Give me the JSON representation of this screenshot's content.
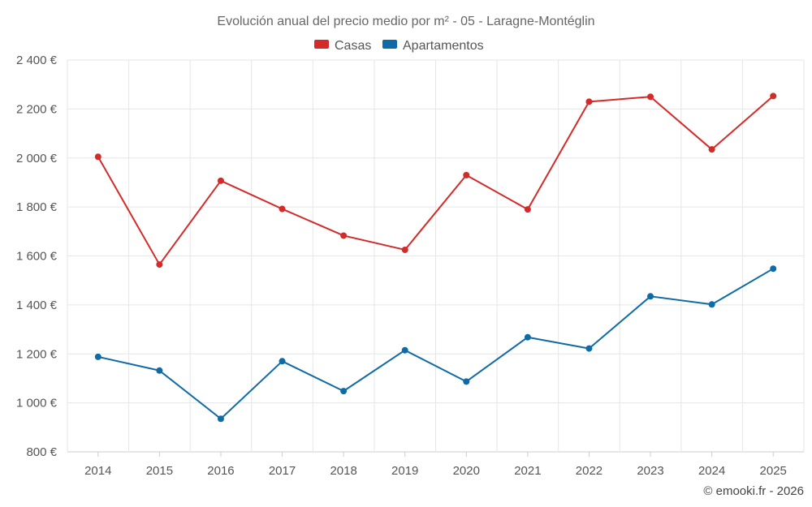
{
  "chart_data": {
    "type": "line",
    "title": "Evolución anual del precio medio por m² - 05 - Laragne-Montéglin",
    "categories": [
      "2014",
      "2015",
      "2016",
      "2017",
      "2018",
      "2019",
      "2020",
      "2021",
      "2022",
      "2023",
      "2024",
      "2025"
    ],
    "series": [
      {
        "name": "Casas",
        "color": "#d42a2a",
        "values": [
          2005,
          1565,
          1907,
          1792,
          1683,
          1625,
          1930,
          1790,
          2230,
          2250,
          2035,
          2253
        ]
      },
      {
        "name": "Apartamentos",
        "color": "#0f6aa6",
        "values": [
          1188,
          1132,
          935,
          1170,
          1048,
          1215,
          1087,
          1268,
          1222,
          1435,
          1402,
          1548
        ]
      }
    ],
    "ylim": [
      800,
      2400
    ],
    "yticks": [
      800,
      1000,
      1200,
      1400,
      1600,
      1800,
      2000,
      2200,
      2400
    ],
    "ytick_labels": [
      "800 €",
      "1 000 €",
      "1 200 €",
      "1 400 €",
      "1 600 €",
      "1 800 €",
      "2 000 €",
      "2 200 €",
      "2 400 €"
    ],
    "grid": true,
    "legend_position": "top-center",
    "xlabel": "",
    "ylabel": ""
  },
  "credit": "© emooki.fr - 2026"
}
